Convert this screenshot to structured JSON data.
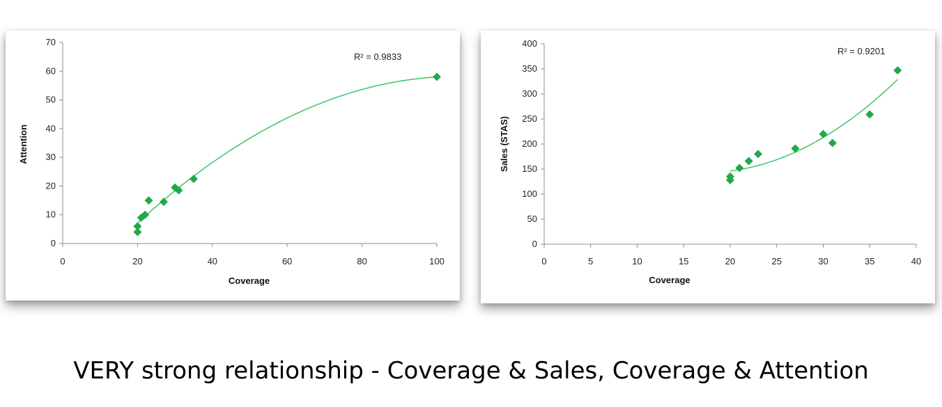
{
  "caption": "VERY strong relationship - Coverage & Sales, Coverage & Attention",
  "chart_data": [
    {
      "type": "scatter",
      "title": "",
      "xlabel": "Coverage",
      "ylabel": "Attention",
      "xlim": [
        0,
        100
      ],
      "ylim": [
        0,
        70
      ],
      "xticks": [
        0,
        20,
        40,
        60,
        80,
        100
      ],
      "yticks": [
        0,
        10,
        20,
        30,
        40,
        50,
        60,
        70
      ],
      "grid": false,
      "marker_color": "#22a84a",
      "trendline": {
        "type": "polynomial",
        "color": "#3cc46a",
        "annotation": "R² = 0.9833",
        "x_range": [
          20,
          100
        ]
      },
      "series": [
        {
          "x": [
            20,
            20,
            21,
            22,
            23,
            27,
            30,
            31,
            35,
            100
          ],
          "y": [
            4,
            6,
            9,
            10,
            15,
            14.5,
            19.5,
            18.5,
            22.5,
            58
          ]
        }
      ]
    },
    {
      "type": "scatter",
      "title": "",
      "xlabel": "Coverage",
      "ylabel": "Sales (STAS)",
      "xlim": [
        0,
        40
      ],
      "ylim": [
        0,
        400
      ],
      "xticks": [
        0,
        5,
        10,
        15,
        20,
        25,
        30,
        35,
        40
      ],
      "yticks": [
        0,
        50,
        100,
        150,
        200,
        250,
        300,
        350,
        400
      ],
      "grid": false,
      "marker_color": "#22a84a",
      "trendline": {
        "type": "polynomial",
        "color": "#3cc46a",
        "annotation": "R² = 0.9201",
        "x_range": [
          20,
          38
        ]
      },
      "series": [
        {
          "x": [
            20,
            20,
            21,
            22,
            23,
            27,
            30,
            31,
            35,
            38
          ],
          "y": [
            128,
            135,
            152,
            166,
            180,
            191,
            220,
            202,
            259,
            347
          ]
        }
      ]
    }
  ]
}
